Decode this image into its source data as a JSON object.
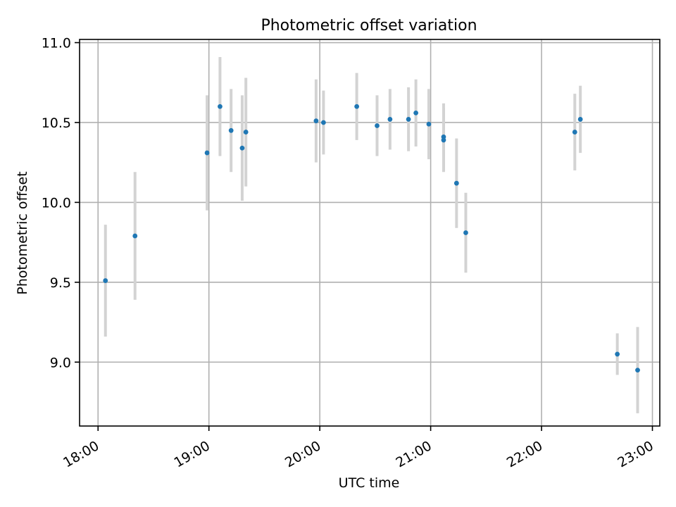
{
  "chart_data": {
    "type": "scatter",
    "title": "Photometric offset variation",
    "xlabel": "UTC time",
    "ylabel": "Photometric offset",
    "x_ticks": [
      "18:00",
      "19:00",
      "20:00",
      "21:00",
      "22:00",
      "23:00"
    ],
    "y_ticks": [
      "9.0",
      "9.5",
      "10.0",
      "10.5",
      "11.0"
    ],
    "xlim": [
      "17:50",
      "23:04"
    ],
    "ylim": [
      8.6,
      11.02
    ],
    "grid": true,
    "colors": {
      "point": "#1f77b4",
      "errorbar": "#d3d3d3",
      "grid": "#b0b0b0"
    },
    "points": [
      {
        "x": "18:04",
        "y": 9.51,
        "err": 0.35
      },
      {
        "x": "18:20",
        "y": 9.79,
        "err": 0.4
      },
      {
        "x": "18:59",
        "y": 10.31,
        "err": 0.36
      },
      {
        "x": "19:06",
        "y": 10.6,
        "err": 0.31
      },
      {
        "x": "19:12",
        "y": 10.45,
        "err": 0.26
      },
      {
        "x": "19:18",
        "y": 10.34,
        "err": 0.33
      },
      {
        "x": "19:20",
        "y": 10.44,
        "err": 0.34
      },
      {
        "x": "19:58",
        "y": 10.51,
        "err": 0.26
      },
      {
        "x": "20:02",
        "y": 10.5,
        "err": 0.2
      },
      {
        "x": "20:20",
        "y": 10.6,
        "err": 0.21
      },
      {
        "x": "20:31",
        "y": 10.48,
        "err": 0.19
      },
      {
        "x": "20:38",
        "y": 10.52,
        "err": 0.19
      },
      {
        "x": "20:48",
        "y": 10.52,
        "err": 0.2
      },
      {
        "x": "20:52",
        "y": 10.56,
        "err": 0.21
      },
      {
        "x": "20:59",
        "y": 10.49,
        "err": 0.22
      },
      {
        "x": "21:07",
        "y": 10.41,
        "err": 0.21
      },
      {
        "x": "21:07",
        "y": 10.39,
        "err": 0.2
      },
      {
        "x": "21:14",
        "y": 10.12,
        "err": 0.28
      },
      {
        "x": "21:19",
        "y": 9.81,
        "err": 0.25
      },
      {
        "x": "22:18",
        "y": 10.44,
        "err": 0.24
      },
      {
        "x": "22:21",
        "y": 10.52,
        "err": 0.21
      },
      {
        "x": "22:41",
        "y": 9.05,
        "err": 0.13
      },
      {
        "x": "22:52",
        "y": 8.95,
        "err": 0.27
      }
    ]
  }
}
